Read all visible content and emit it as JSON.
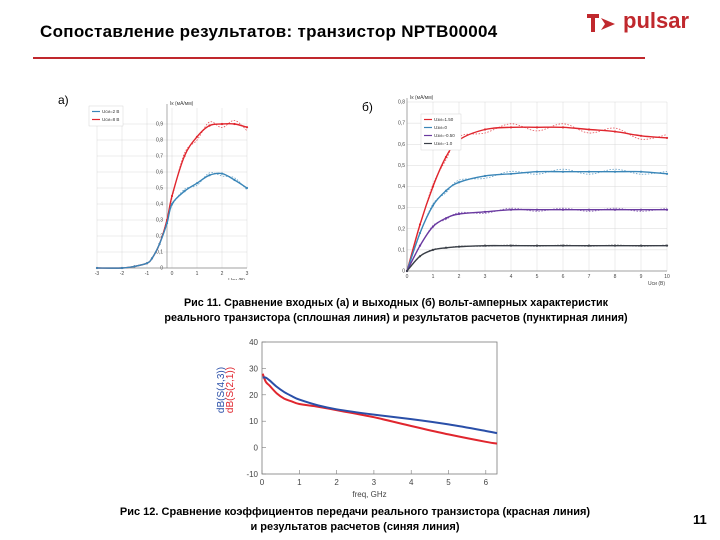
{
  "slide": {
    "title": "Сопоставление результатов: транзистор NPTB00004",
    "brand": "pulsar",
    "page_number": "11",
    "label_a": "а)",
    "label_b": "б)",
    "caption_fig11_line1": "Рис 11. Сравнение входных (а) и выходных (б) вольт-амперных характеристик",
    "caption_fig11_line2": "реального транзистора (сплошная линия) и результатов расчетов (пунктирная линия)",
    "caption_fig12_line1": "Рис 12. Сравнение коэффициентов передачи реального транзистора (красная линия)",
    "caption_fig12_line2": "и результатов расчетов (синяя линия)"
  },
  "colors": {
    "accent": "#c0282d",
    "red": "#e0262e",
    "blue": "#2a4fa8",
    "steel": "#3a86b8",
    "purple": "#6a3aa0",
    "dark": "#3a3f47",
    "grid": "#d9d9d9"
  },
  "chart_data": [
    {
      "type": "line",
      "panel": "а)",
      "ylabel": "Iк (мА/мм)",
      "xlabel": "Uзи (В)",
      "x_ticks": [
        "-3",
        "-2",
        "-1",
        "0",
        "1",
        "2",
        "3"
      ],
      "y_ticks": [
        "0",
        "0,1",
        "0,2",
        "0,3",
        "0,4",
        "0,5",
        "0,6",
        "0,7",
        "0,8",
        "0,9"
      ],
      "xlim": [
        -3,
        3
      ],
      "ylim": [
        0,
        1.0
      ],
      "legend": [
        "Uси=2 В",
        "Uси=8 В"
      ],
      "series": [
        {
          "name": "Uси=8 В",
          "color": "#e0262e",
          "x": [
            -3,
            -2,
            -1.5,
            -1,
            -0.8,
            -0.5,
            -0.2,
            0,
            0.5,
            1,
            1.5,
            2,
            2.5,
            3
          ],
          "y": [
            0,
            0,
            0.01,
            0.03,
            0.06,
            0.15,
            0.3,
            0.45,
            0.7,
            0.82,
            0.89,
            0.9,
            0.9,
            0.88
          ]
        },
        {
          "name": "Uси=2 В",
          "color": "#3a86b8",
          "x": [
            -3,
            -2,
            -1.5,
            -1,
            -0.8,
            -0.5,
            -0.2,
            0,
            0.5,
            1,
            1.5,
            2,
            2.5,
            3
          ],
          "y": [
            0,
            0,
            0.01,
            0.03,
            0.06,
            0.15,
            0.28,
            0.4,
            0.48,
            0.53,
            0.58,
            0.59,
            0.55,
            0.5
          ]
        }
      ]
    },
    {
      "type": "line",
      "panel": "б)",
      "ylabel": "Iк (мА/мм)",
      "xlabel": "Uси (В)",
      "x_ticks": [
        "0",
        "1",
        "2",
        "3",
        "4",
        "5",
        "6",
        "7",
        "8",
        "9",
        "10"
      ],
      "y_ticks": [
        "0",
        "0,1",
        "0,2",
        "0,3",
        "0,4",
        "0,5",
        "0,6",
        "0,7",
        "0,8"
      ],
      "xlim": [
        0,
        10
      ],
      "ylim": [
        0,
        0.8
      ],
      "legend": [
        "Uзи=1.50",
        "Uзи=0",
        "Uзи=-0.50",
        "Uзи=-1.0"
      ],
      "series": [
        {
          "name": "Uзи=1.50",
          "color": "#e0262e",
          "x": [
            0,
            0.5,
            1,
            1.5,
            2,
            3,
            4,
            5,
            6,
            7,
            8,
            9,
            10
          ],
          "y": [
            0,
            0.22,
            0.4,
            0.54,
            0.62,
            0.67,
            0.68,
            0.68,
            0.68,
            0.67,
            0.66,
            0.64,
            0.63
          ]
        },
        {
          "name": "Uзи=0",
          "color": "#3a86b8",
          "x": [
            0,
            0.5,
            1,
            1.5,
            2,
            3,
            4,
            5,
            6,
            7,
            8,
            9,
            10
          ],
          "y": [
            0,
            0.18,
            0.31,
            0.38,
            0.42,
            0.45,
            0.46,
            0.47,
            0.47,
            0.47,
            0.47,
            0.47,
            0.46
          ]
        },
        {
          "name": "Uзи=-0.50",
          "color": "#6a3aa0",
          "x": [
            0,
            0.5,
            1,
            1.5,
            2,
            3,
            4,
            5,
            6,
            7,
            8,
            9,
            10
          ],
          "y": [
            0,
            0.12,
            0.21,
            0.25,
            0.27,
            0.28,
            0.29,
            0.29,
            0.29,
            0.29,
            0.29,
            0.29,
            0.29
          ]
        },
        {
          "name": "Uзи=-1.0",
          "color": "#3a3f47",
          "x": [
            0,
            0.5,
            1,
            1.5,
            2,
            3,
            4,
            5,
            6,
            7,
            8,
            9,
            10
          ],
          "y": [
            0,
            0.07,
            0.1,
            0.11,
            0.115,
            0.12,
            0.12,
            0.12,
            0.12,
            0.12,
            0.12,
            0.12,
            0.12
          ]
        }
      ]
    },
    {
      "type": "line",
      "xlabel": "freq, GHz",
      "ylabel_lines": [
        "dB(S(4,3))",
        "dB(S(2,1))"
      ],
      "x_ticks": [
        "0",
        "1",
        "2",
        "3",
        "4",
        "5",
        "6"
      ],
      "y_ticks": [
        "-10",
        "0",
        "10",
        "20",
        "30",
        "40"
      ],
      "xlim": [
        0,
        6.3
      ],
      "ylim": [
        -10,
        40
      ],
      "series": [
        {
          "name": "dB(S(2,1))",
          "color": "#e0262e",
          "x": [
            0.02,
            0.1,
            0.2,
            0.4,
            0.6,
            0.8,
            1,
            1.5,
            2,
            3,
            4,
            5,
            6,
            6.3
          ],
          "y": [
            28,
            25,
            23.5,
            20.5,
            18.5,
            17.5,
            16.5,
            15.5,
            14.2,
            11.5,
            8.2,
            5,
            2.2,
            1.5
          ]
        },
        {
          "name": "dB(S(4,3))",
          "color": "#2a4fa8",
          "x": [
            0.02,
            0.1,
            0.2,
            0.4,
            0.6,
            0.8,
            1,
            1.5,
            2,
            3,
            4,
            5,
            6,
            6.3
          ],
          "y": [
            26.5,
            26.5,
            25.5,
            23,
            21,
            19.5,
            18.2,
            16,
            14.5,
            12.5,
            10.8,
            8.8,
            6.3,
            5.5
          ]
        }
      ]
    }
  ]
}
